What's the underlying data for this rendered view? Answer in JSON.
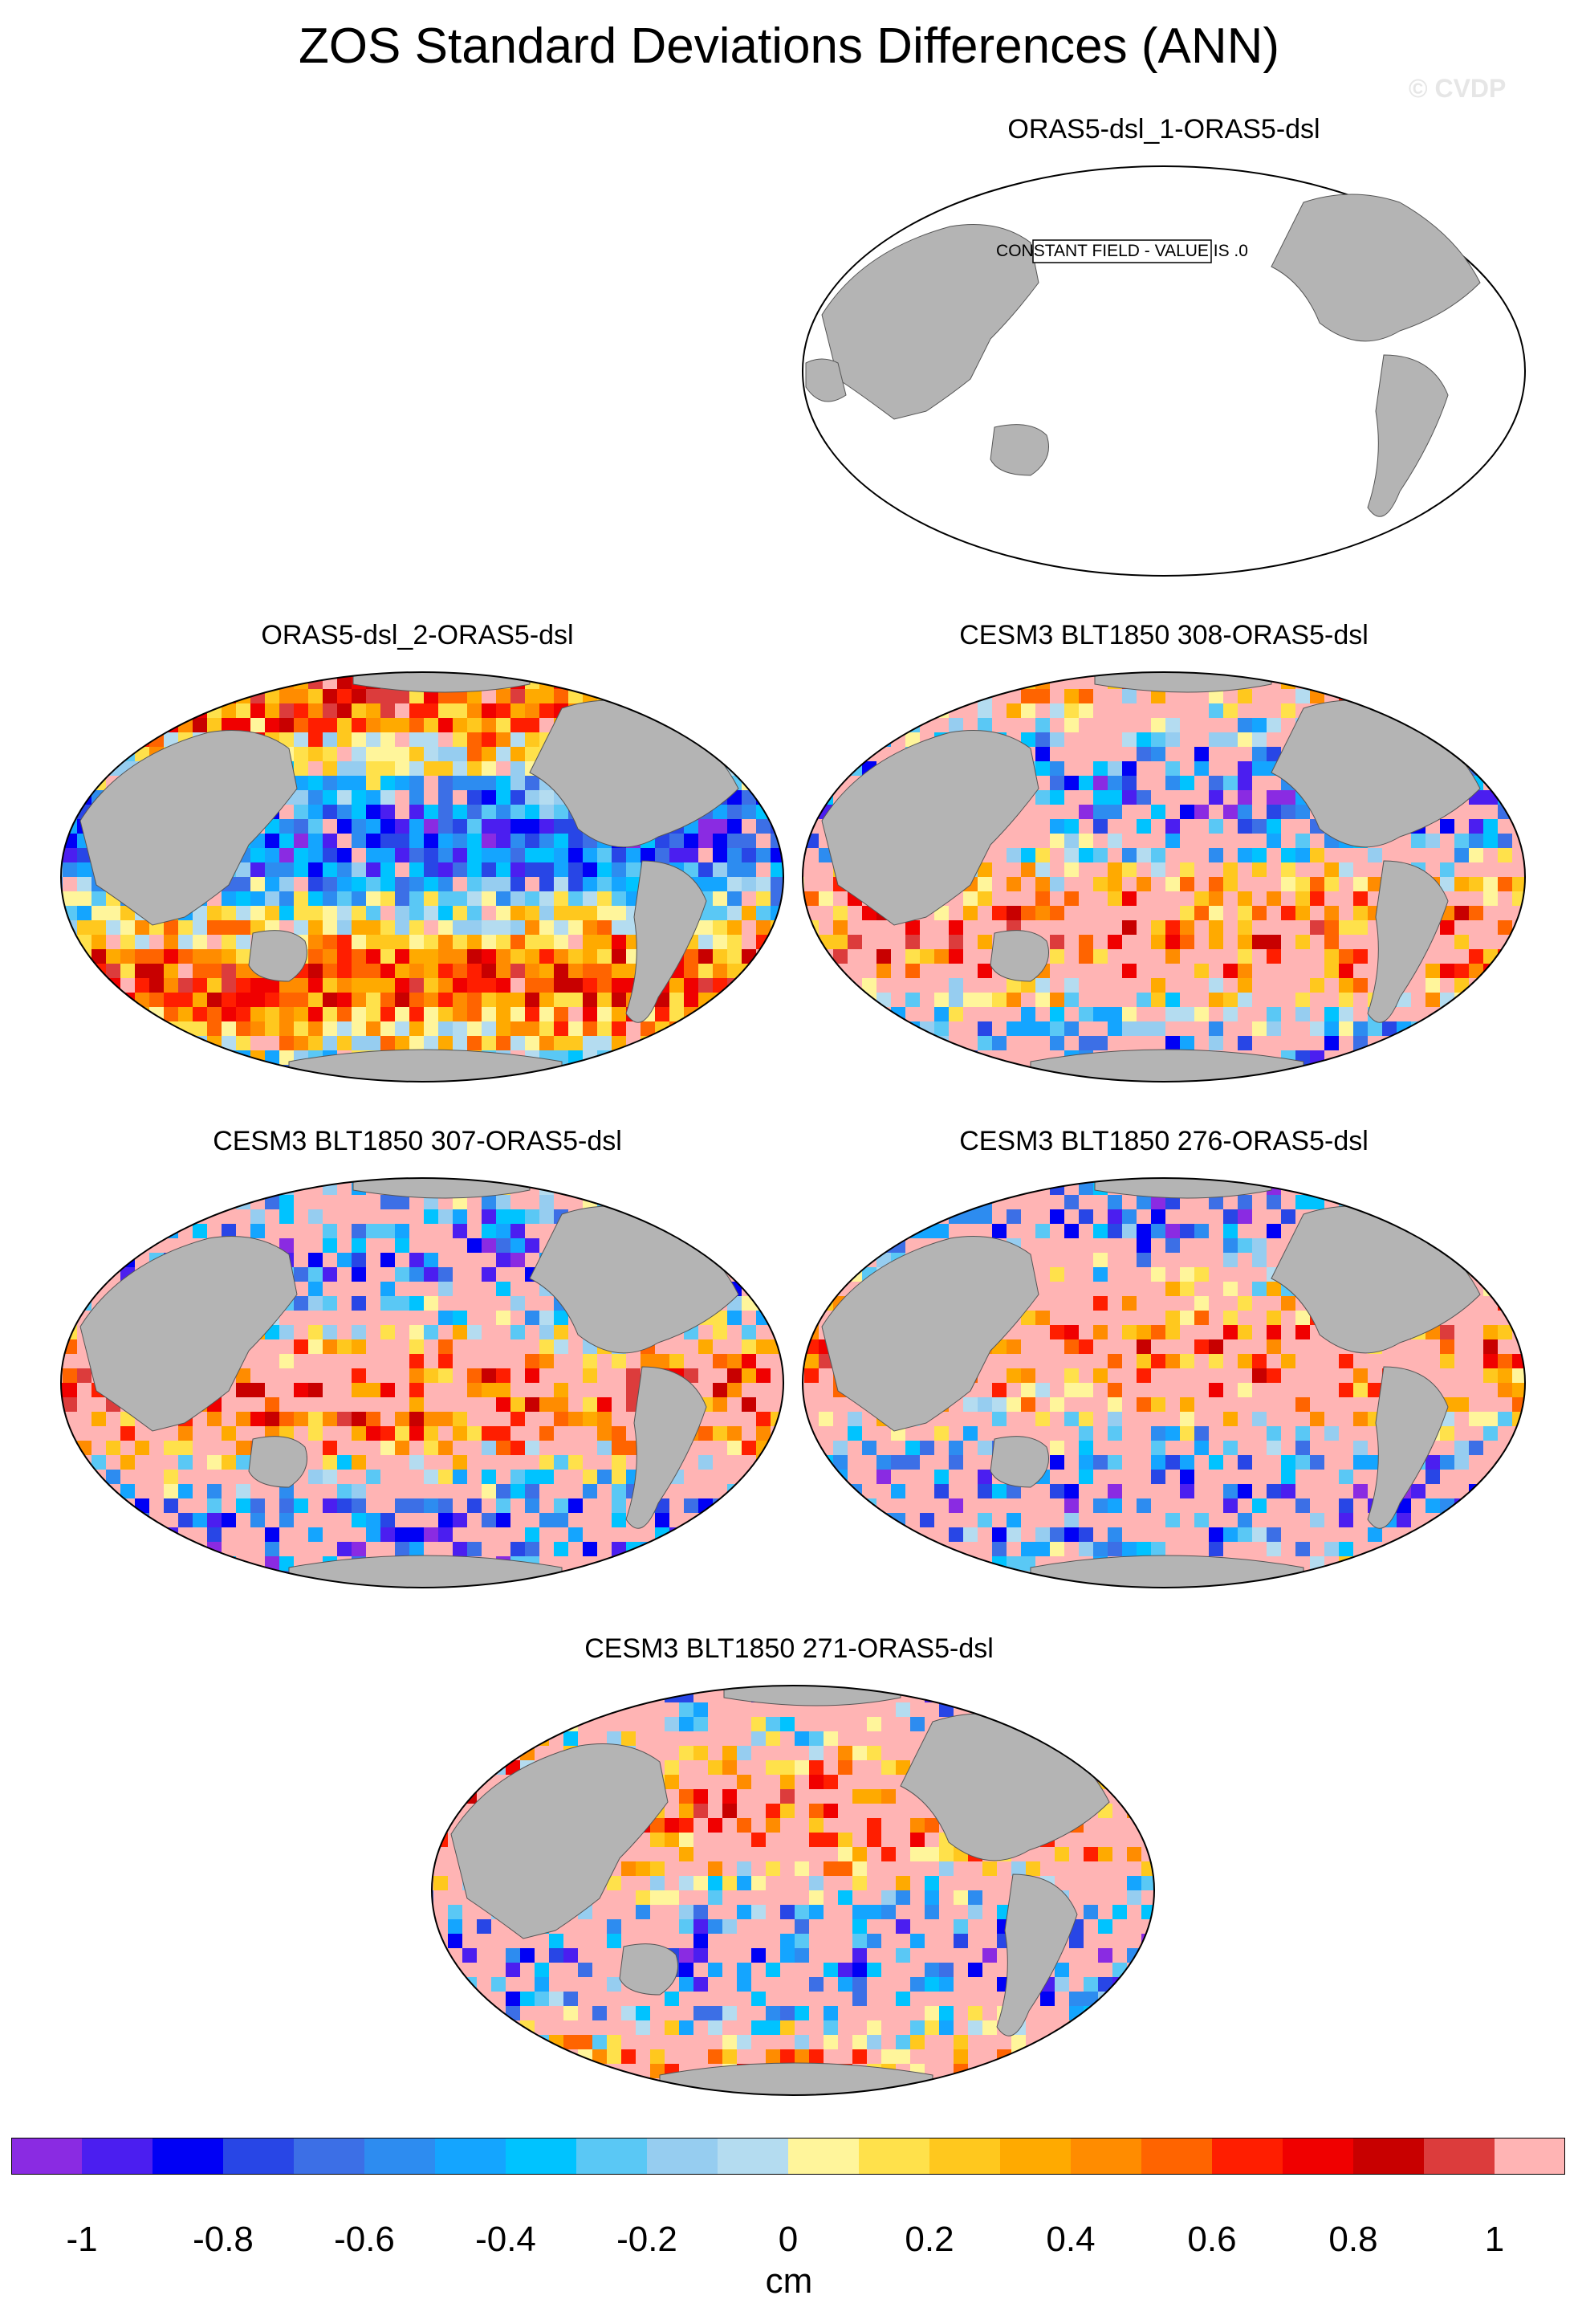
{
  "title": "ZOS Standard Deviations Differences (ANN)",
  "watermark": "© CVDP",
  "panels": [
    {
      "title": "ORAS5-dsl_1-ORAS5-dsl",
      "note": "CONSTANT FIELD - VALUE IS .0"
    },
    {
      "title": "ORAS5-dsl_2-ORAS5-dsl"
    },
    {
      "title": "CESM3 BLT1850 308-ORAS5-dsl"
    },
    {
      "title": "CESM3 BLT1850 307-ORAS5-dsl"
    },
    {
      "title": "CESM3 BLT1850 276-ORAS5-dsl"
    },
    {
      "title": "CESM3 BLT1850 271-ORAS5-dsl"
    }
  ],
  "colorbar": {
    "colors": [
      "#8a2be2",
      "#4b1ef0",
      "#0000f5",
      "#2846e6",
      "#3c6fe6",
      "#2d8cf0",
      "#14a5ff",
      "#00c3ff",
      "#5ac8f5",
      "#96cdf0",
      "#b4dcf0",
      "#fff59b",
      "#ffe14b",
      "#ffc81e",
      "#ffaa00",
      "#ff8c00",
      "#ff6400",
      "#ff1e00",
      "#f00000",
      "#c80000",
      "#dc3c3c",
      "#ffb4b4"
    ],
    "labels": [
      "-1",
      "-0.8",
      "-0.6",
      "-0.4",
      "-0.2",
      "0",
      "0.2",
      "0.4",
      "0.6",
      "0.8",
      "1"
    ],
    "units": "cm"
  }
}
